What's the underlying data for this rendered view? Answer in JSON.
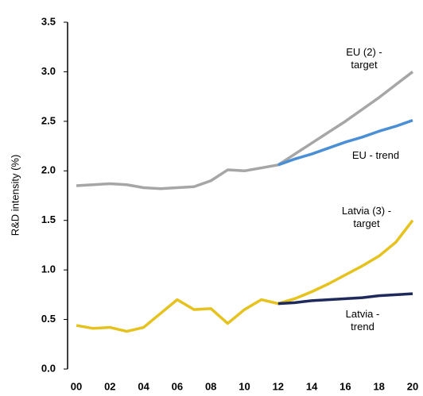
{
  "chart_data": {
    "type": "line",
    "y_label": "R&D intensity (%)",
    "categories": [
      "00",
      null,
      "02",
      null,
      "04",
      null,
      "06",
      null,
      "08",
      null,
      "10",
      null,
      "12",
      null,
      "14",
      null,
      "16",
      null,
      "18",
      null,
      "20"
    ],
    "ylim": [
      0,
      3.5
    ],
    "yticks": [
      {
        "value": 0,
        "label": "0.0"
      },
      0.5,
      {
        "value": 1,
        "label": "1.0"
      },
      1.5,
      {
        "value": 2,
        "label": "2.0"
      },
      2.5,
      {
        "value": 3,
        "label": "3.0"
      },
      3.5
    ],
    "series": [
      {
        "name": "EU (2) - target",
        "color": "#a6a6a6",
        "values": [
          1.85,
          1.86,
          1.87,
          1.86,
          1.83,
          1.82,
          1.83,
          1.84,
          1.9,
          2.01,
          2.0,
          2.03,
          2.06,
          2.17,
          2.28,
          2.39,
          2.5,
          2.62,
          2.74,
          2.87,
          3.0
        ]
      },
      {
        "name": "EU - trend",
        "color": "#4a8fd6",
        "values": [
          null,
          null,
          null,
          null,
          null,
          null,
          null,
          null,
          null,
          null,
          null,
          null,
          2.06,
          2.12,
          2.17,
          2.23,
          2.29,
          2.34,
          2.4,
          2.45,
          2.51
        ]
      },
      {
        "name": "Latvia (3) - target",
        "color": "#e6c21e",
        "values": [
          0.44,
          0.41,
          0.42,
          0.38,
          0.42,
          0.56,
          0.7,
          0.6,
          0.61,
          0.46,
          0.6,
          0.7,
          0.66,
          0.71,
          0.78,
          0.86,
          0.95,
          1.04,
          1.14,
          1.28,
          1.5
        ]
      },
      {
        "name": "Latvia - trend",
        "color": "#1f2a5c",
        "values": [
          null,
          null,
          null,
          null,
          null,
          null,
          null,
          null,
          null,
          null,
          null,
          null,
          0.66,
          0.67,
          0.69,
          0.7,
          0.71,
          0.72,
          0.74,
          0.75,
          0.76
        ]
      }
    ]
  }
}
